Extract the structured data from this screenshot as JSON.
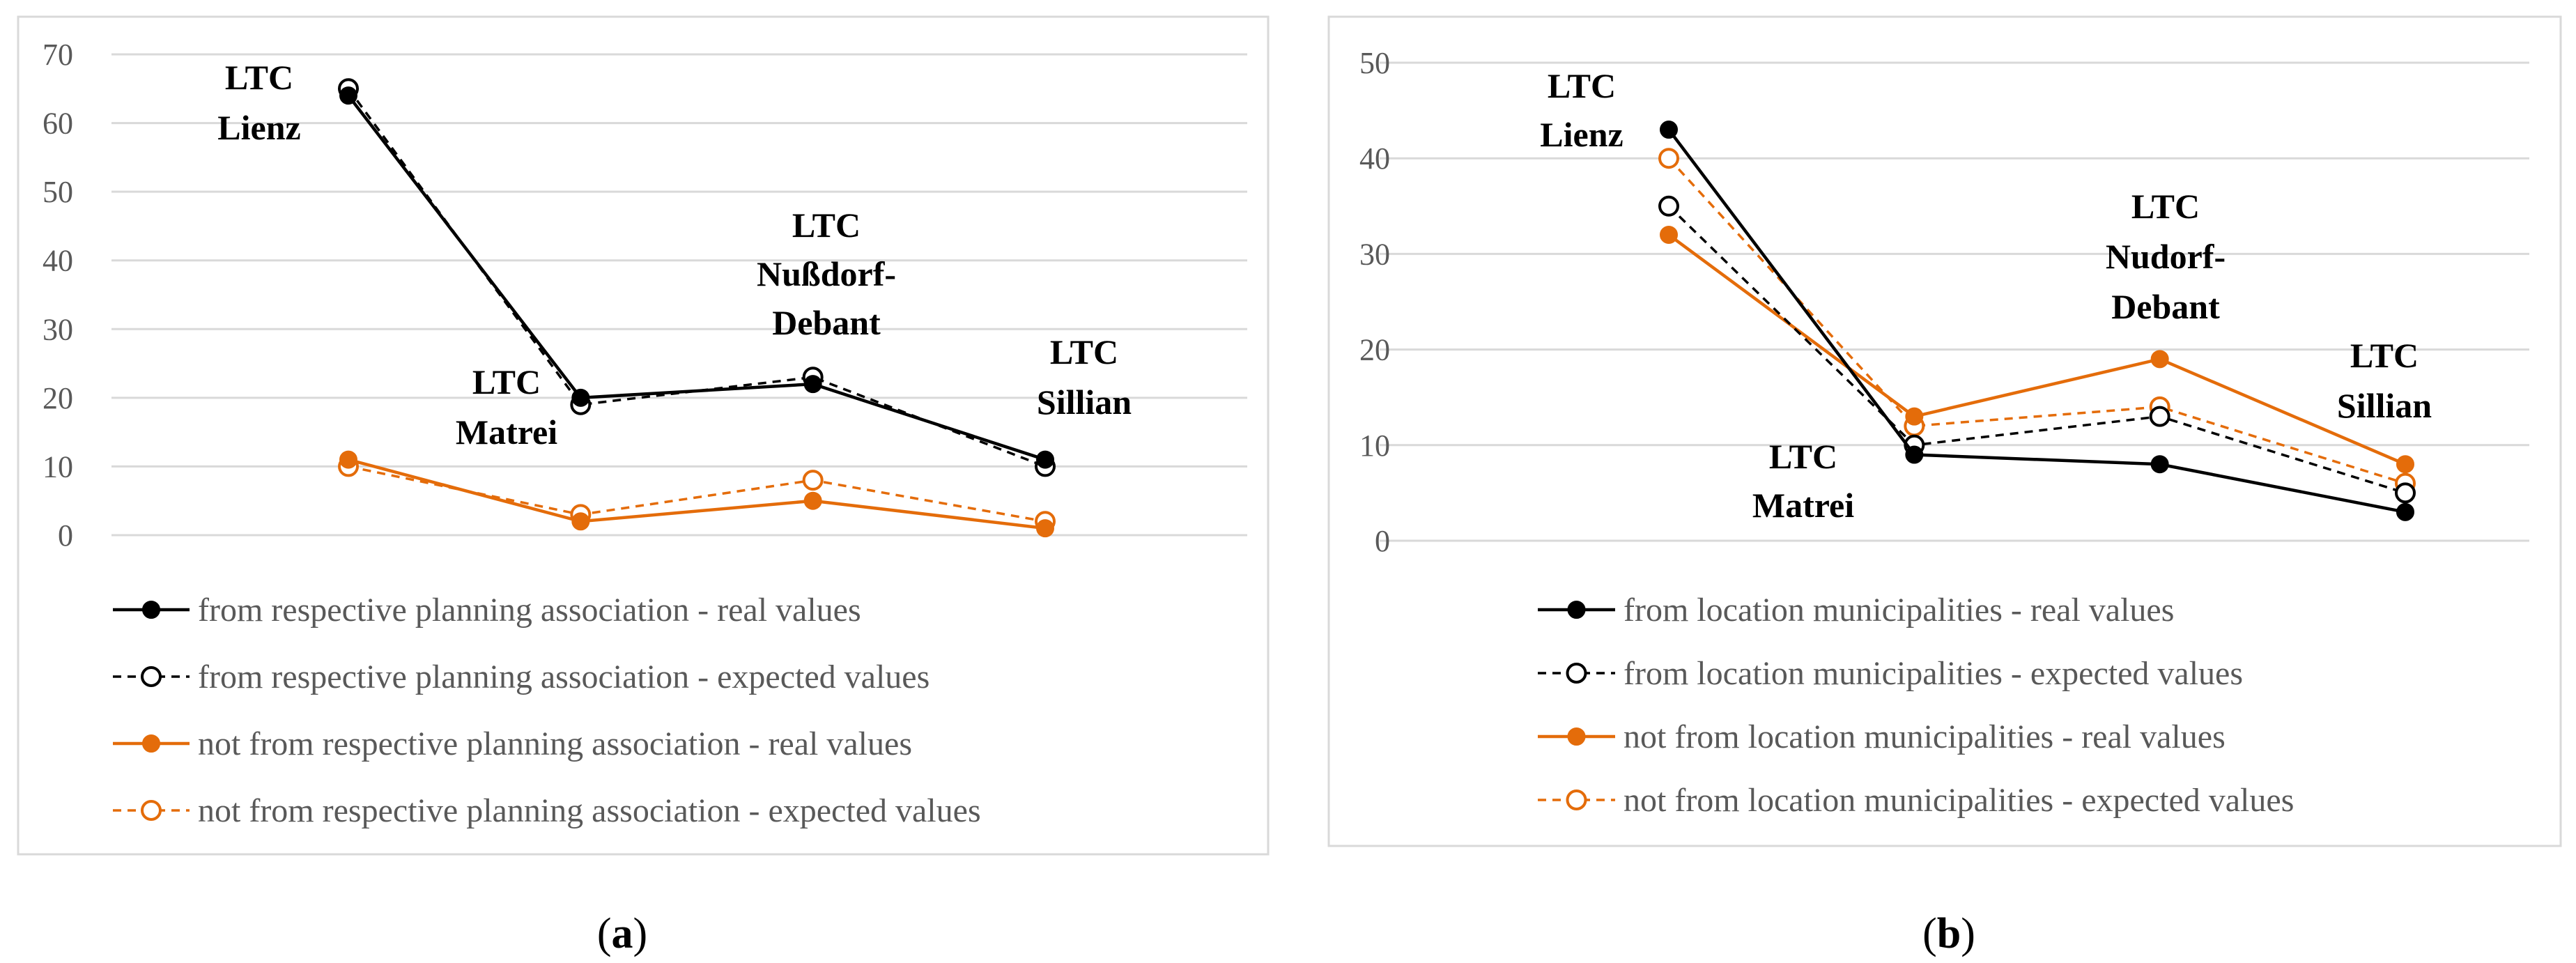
{
  "chart_data": [
    {
      "type": "line",
      "panel": "a",
      "caption": {
        "open": "(",
        "letter": "a",
        "close": ")"
      },
      "categories": [
        "LTC Lienz",
        "LTC Matrei",
        "LTC Nußdorf-Debant",
        "LTC Sillian"
      ],
      "ylim": [
        0,
        70
      ],
      "yticks": [
        0,
        10,
        20,
        30,
        40,
        50,
        60,
        70
      ],
      "grid": true,
      "legend_position": "bottom",
      "series": [
        {
          "name": "from respective planning association - real values",
          "values": [
            64,
            20,
            22,
            11
          ],
          "color": "#000000",
          "dashed": false,
          "filled": true
        },
        {
          "name": "from respective planning association - expected values",
          "values": [
            65,
            19,
            23,
            10
          ],
          "color": "#000000",
          "dashed": true,
          "filled": false
        },
        {
          "name": "not from respective planning association - real values",
          "values": [
            11,
            2,
            5,
            1
          ],
          "color": "#E46C0A",
          "dashed": false,
          "filled": true
        },
        {
          "name": "not from respective planning association - expected values",
          "values": [
            10,
            3,
            8,
            2
          ],
          "color": "#E46C0A",
          "dashed": true,
          "filled": false
        }
      ],
      "annotations": [
        {
          "lines": [
            "LTC",
            "Lienz"
          ]
        },
        {
          "lines": [
            "LTC",
            "Matrei"
          ]
        },
        {
          "lines": [
            "LTC",
            "Nußdorf-",
            "Debant"
          ]
        },
        {
          "lines": [
            "LTC",
            "Sillian"
          ]
        }
      ]
    },
    {
      "type": "line",
      "panel": "b",
      "caption": {
        "open": "(",
        "letter": "b",
        "close": ")"
      },
      "categories": [
        "LTC Lienz",
        "LTC Matrei",
        "LTC Nudorf-Debant",
        "LTC Sillian"
      ],
      "ylim": [
        0,
        50
      ],
      "yticks": [
        0,
        10,
        20,
        30,
        40,
        50
      ],
      "grid": true,
      "legend_position": "bottom",
      "series": [
        {
          "name": "from location municipalities - real values",
          "values": [
            43,
            9,
            8,
            3
          ],
          "color": "#000000",
          "dashed": false,
          "filled": true
        },
        {
          "name": "from location municipalities - expected values",
          "values": [
            35,
            10,
            13,
            5
          ],
          "color": "#000000",
          "dashed": true,
          "filled": false
        },
        {
          "name": "not from location municipalities - real values",
          "values": [
            32,
            13,
            19,
            8
          ],
          "color": "#E46C0A",
          "dashed": false,
          "filled": true
        },
        {
          "name": "not from location municipalities - expected values",
          "values": [
            40,
            12,
            14,
            6
          ],
          "color": "#E46C0A",
          "dashed": true,
          "filled": false
        }
      ],
      "annotations": [
        {
          "lines": [
            "LTC",
            "Lienz"
          ]
        },
        {
          "lines": [
            "LTC",
            "Matrei"
          ]
        },
        {
          "lines": [
            "LTC",
            "Nudorf-",
            "Debant"
          ]
        },
        {
          "lines": [
            "LTC",
            "Sillian"
          ]
        }
      ]
    }
  ]
}
